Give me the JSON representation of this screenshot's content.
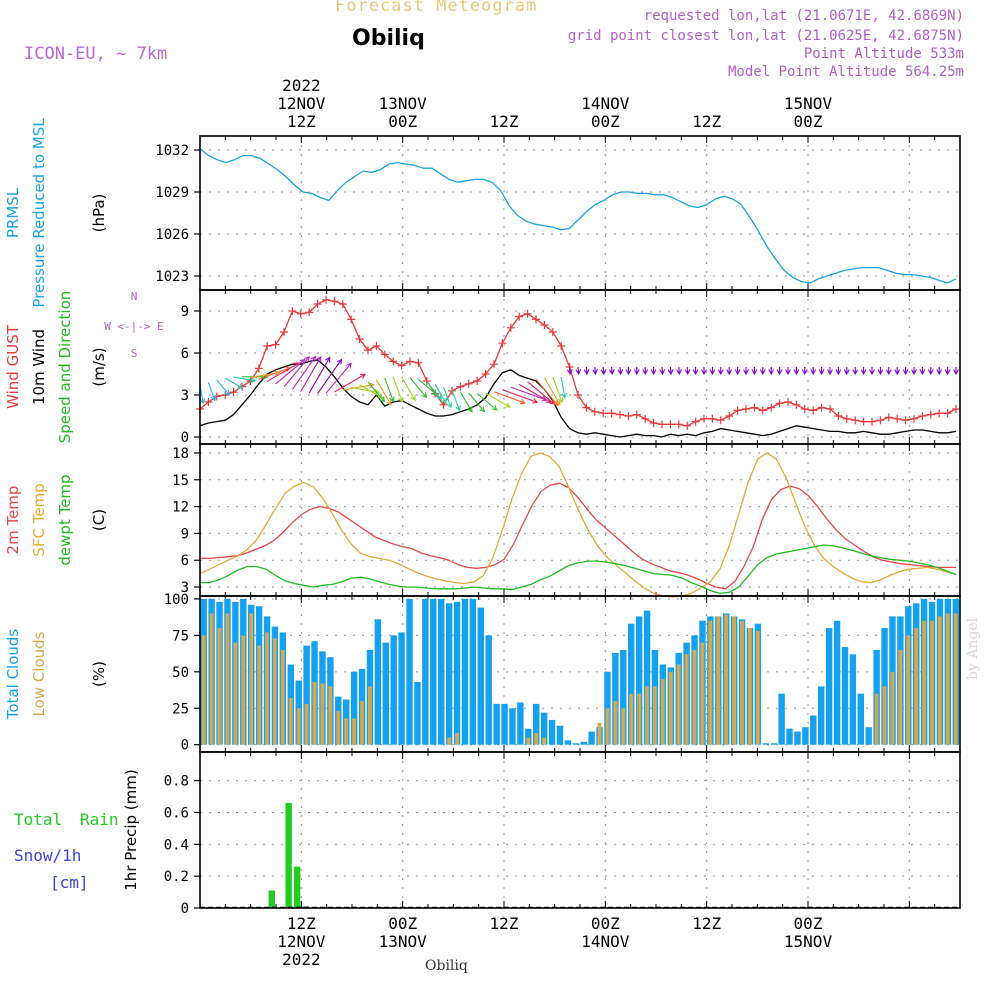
{
  "header": {
    "title": "Forecast Meteogram",
    "location": "Obiliq",
    "model": "ICON-EU, ~ 7km",
    "requested": "requested lon,lat (21.0671E, 42.6869N)",
    "gridpoint": "grid point closest lon,lat (21.0625E, 42.6875N)",
    "point_alt": "Point Altitude 533m",
    "model_alt": "Model Point Altitude 564.25m"
  },
  "footer": {
    "location": "Obiliq",
    "credit": "by Angel"
  },
  "colors": {
    "pressure": "#1aa3e8",
    "gust": "#e83c3c",
    "wind": "#000000",
    "direction": "#22bb22",
    "temp2m": "#e84848",
    "sfc": "#e8a838",
    "dewpt": "#22bb22",
    "total_clouds": "#16a0f0",
    "low_clouds": "#d8a850",
    "rain": "#22cc22",
    "snow": "#4040e0",
    "arrow_low": "#8000d0"
  },
  "time_axis": {
    "top_labels": [
      {
        "h": 12,
        "lines": [
          "2022",
          "12NOV",
          "12Z"
        ]
      },
      {
        "h": 24,
        "lines": [
          "13NOV",
          "00Z"
        ]
      },
      {
        "h": 36,
        "lines": [
          "12Z"
        ]
      },
      {
        "h": 48,
        "lines": [
          "14NOV",
          "00Z"
        ]
      },
      {
        "h": 60,
        "lines": [
          "12Z"
        ]
      },
      {
        "h": 72,
        "lines": [
          "15NOV",
          "00Z"
        ]
      }
    ],
    "bottom_labels": [
      {
        "h": 12,
        "lines": [
          "12Z",
          "12NOV",
          "2022"
        ]
      },
      {
        "h": 24,
        "lines": [
          "00Z",
          "13NOV"
        ]
      },
      {
        "h": 36,
        "lines": [
          "12Z"
        ]
      },
      {
        "h": 48,
        "lines": [
          "00Z",
          "14NOV"
        ]
      },
      {
        "h": 60,
        "lines": [
          "12Z"
        ]
      },
      {
        "h": 72,
        "lines": [
          "00Z",
          "15NOV"
        ]
      }
    ]
  },
  "chart_data": [
    {
      "type": "line",
      "id": "pressure",
      "ylabel_lines": [
        {
          "text": "PRMSL",
          "color": "#1aa3e8"
        },
        {
          "text": "Pressure Reduced to MSL",
          "color": "#1aa3e8"
        },
        {
          "text": "(hPa)",
          "color": "#000000"
        }
      ],
      "ylim": [
        1022,
        1033
      ],
      "yticks": [
        1023,
        1026,
        1029,
        1032
      ],
      "series": [
        {
          "key": "prmsl",
          "values": [
            1032.1,
            1031.6,
            1031.3,
            1031.1,
            1031.3,
            1031.6,
            1031.6,
            1031.4,
            1031.0,
            1030.6,
            1030.1,
            1029.5,
            1029.0,
            1028.9,
            1028.6,
            1028.4,
            1029.1,
            1029.7,
            1030.1,
            1030.5,
            1030.4,
            1030.6,
            1031.0,
            1031.1,
            1031.0,
            1030.9,
            1030.7,
            1030.7,
            1030.3,
            1029.9,
            1029.7,
            1029.8,
            1029.9,
            1029.9,
            1029.7,
            1029.1,
            1028.0,
            1027.3,
            1026.9,
            1026.7,
            1026.6,
            1026.5,
            1026.3,
            1026.4,
            1027.0,
            1027.6,
            1028.1,
            1028.4,
            1028.8,
            1029.0,
            1029.0,
            1028.9,
            1028.9,
            1028.8,
            1028.8,
            1028.6,
            1028.3,
            1028.0,
            1027.9,
            1028.1,
            1028.5,
            1028.7,
            1028.5,
            1028.1,
            1027.2,
            1026.2,
            1025.1,
            1024.2,
            1023.4,
            1022.9,
            1022.6,
            1022.5,
            1022.8,
            1023.0,
            1023.2,
            1023.4,
            1023.5,
            1023.6,
            1023.6,
            1023.6,
            1023.4,
            1023.2,
            1023.1,
            1023.1,
            1023.0,
            1022.9,
            1022.7,
            1022.5,
            1022.8
          ]
        }
      ]
    },
    {
      "type": "line",
      "id": "wind",
      "ylabel_lines": [
        {
          "text": "Wind GUST",
          "color": "#e83c3c"
        },
        {
          "text": "10m Wind",
          "color": "#000000"
        },
        {
          "text": "Speed and Direction",
          "color": "#22bb22"
        },
        {
          "text": "(m/s)",
          "color": "#000000"
        }
      ],
      "compass": "W <-|-> E",
      "ylim": [
        -0.5,
        10.5
      ],
      "yticks": [
        0,
        3,
        6,
        9
      ],
      "series": [
        {
          "key": "gust",
          "values": [
            2.0,
            2.5,
            2.9,
            3.0,
            3.2,
            3.6,
            4.0,
            4.9,
            6.5,
            6.6,
            7.5,
            9.0,
            8.8,
            8.9,
            9.5,
            9.8,
            9.7,
            9.5,
            8.4,
            7.0,
            6.2,
            6.5,
            5.9,
            5.4,
            5.1,
            5.4,
            5.3,
            4.0,
            3.1,
            2.3,
            3.3,
            3.6,
            3.8,
            4.0,
            4.5,
            5.2,
            6.7,
            7.8,
            8.6,
            8.8,
            8.4,
            8.0,
            7.5,
            6.5,
            5.0,
            3.0,
            2.1,
            1.8,
            1.7,
            1.7,
            1.6,
            1.5,
            1.6,
            1.3,
            1.0,
            0.9,
            0.9,
            0.9,
            0.8,
            1.1,
            1.3,
            1.3,
            1.2,
            1.5,
            1.9,
            2.0,
            2.1,
            1.9,
            2.1,
            2.4,
            2.5,
            2.3,
            2.0,
            1.9,
            2.1,
            2.0,
            1.5,
            1.3,
            1.2,
            1.1,
            1.1,
            1.2,
            1.4,
            1.3,
            1.2,
            1.3,
            1.5,
            1.6,
            1.7,
            1.7,
            2.0
          ]
        },
        {
          "key": "wind",
          "values": [
            0.8,
            1.0,
            1.1,
            1.2,
            1.6,
            2.3,
            3.0,
            3.8,
            4.5,
            4.8,
            5.0,
            5.2,
            5.2,
            5.4,
            5.5,
            5.0,
            4.3,
            3.5,
            2.9,
            2.5,
            2.3,
            3.0,
            2.2,
            2.5,
            2.6,
            2.3,
            2.0,
            1.7,
            1.5,
            1.5,
            1.6,
            1.8,
            2.0,
            2.3,
            2.8,
            3.8,
            4.6,
            4.8,
            4.4,
            4.2,
            4.0,
            3.4,
            2.6,
            1.4,
            0.6,
            0.3,
            0.2,
            0.3,
            0.2,
            0.1,
            0.0,
            0.1,
            0.2,
            0.1,
            0.1,
            0.0,
            0.2,
            0.1,
            0.2,
            0.1,
            0.3,
            0.4,
            0.6,
            0.5,
            0.4,
            0.3,
            0.2,
            0.1,
            0.2,
            0.4,
            0.6,
            0.8,
            0.7,
            0.6,
            0.5,
            0.4,
            0.4,
            0.3,
            0.3,
            0.4,
            0.3,
            0.2,
            0.2,
            0.3,
            0.4,
            0.5,
            0.5,
            0.4,
            0.3,
            0.3,
            0.4
          ]
        }
      ],
      "direction_angles": [
        170,
        160,
        140,
        120,
        100,
        90,
        80,
        70,
        60,
        50,
        40,
        35,
        30,
        30,
        35,
        40,
        60,
        80,
        100,
        120,
        140,
        150,
        160,
        160,
        150,
        140,
        130,
        140,
        150,
        160,
        160,
        150,
        140,
        130,
        120,
        110,
        110,
        110,
        120,
        130,
        140,
        150,
        160,
        170,
        175,
        175,
        175,
        175,
        175,
        175,
        175,
        180,
        180,
        180,
        180,
        175,
        175,
        175,
        175,
        180,
        180,
        180,
        180,
        180,
        180,
        180,
        180,
        180,
        180,
        180,
        180,
        180,
        180,
        180,
        180,
        180,
        180,
        180,
        180,
        180,
        180,
        180,
        180,
        180,
        180,
        180,
        180,
        180,
        180,
        180,
        180
      ]
    },
    {
      "type": "line",
      "id": "temperature",
      "ylabel_lines": [
        {
          "text": "2m Temp",
          "color": "#e84848"
        },
        {
          "text": "SFC Temp",
          "color": "#e8a838"
        },
        {
          "text": "dewpt Temp",
          "color": "#22bb22"
        },
        {
          "text": "(C)",
          "color": "#000000"
        }
      ],
      "ylim": [
        2,
        19
      ],
      "yticks": [
        3,
        6,
        9,
        12,
        15,
        18
      ],
      "series": [
        {
          "key": "t2m",
          "values": [
            6.2,
            6.2,
            6.3,
            6.4,
            6.5,
            6.8,
            7.2,
            7.6,
            8.2,
            9.1,
            10.2,
            11.1,
            11.7,
            12.0,
            11.8,
            11.4,
            10.7,
            10.0,
            9.3,
            8.6,
            8.2,
            7.8,
            7.5,
            7.3,
            6.8,
            6.5,
            6.3,
            6.0,
            5.5,
            5.2,
            5.1,
            5.2,
            5.5,
            6.1,
            7.8,
            10.0,
            12.1,
            13.7,
            14.4,
            14.6,
            14.1,
            13.0,
            11.7,
            10.5,
            9.6,
            8.7,
            7.8,
            6.9,
            6.1,
            5.6,
            5.2,
            4.8,
            4.6,
            4.3,
            3.9,
            3.4,
            3.0,
            2.8,
            3.6,
            5.3,
            7.5,
            10.6,
            12.8,
            13.9,
            14.3,
            14.0,
            13.2,
            12.0,
            10.6,
            9.4,
            8.4,
            7.7,
            7.0,
            6.4,
            6.0,
            5.8,
            5.6,
            5.5,
            5.4,
            5.3,
            5.2,
            5.2,
            5.2
          ]
        },
        {
          "key": "sfc",
          "values": [
            4.5,
            5.0,
            5.5,
            6.0,
            6.5,
            7.2,
            8.3,
            10.0,
            11.8,
            13.5,
            14.3,
            14.7,
            14.2,
            12.9,
            11.2,
            9.3,
            7.8,
            6.8,
            6.4,
            6.2,
            6.0,
            5.6,
            5.1,
            4.6,
            4.2,
            3.9,
            3.7,
            3.5,
            3.4,
            3.6,
            4.3,
            6.3,
            9.4,
            12.8,
            15.6,
            17.6,
            18.0,
            17.6,
            16.5,
            14.2,
            11.7,
            9.5,
            7.7,
            6.4,
            5.5,
            4.6,
            3.7,
            2.9,
            2.3,
            2.0,
            1.9,
            2.0,
            2.3,
            2.9,
            3.6,
            5.0,
            7.6,
            11.1,
            14.7,
            17.3,
            18.0,
            17.3,
            15.3,
            12.5,
            9.8,
            7.7,
            6.2,
            5.3,
            4.6,
            4.0,
            3.6,
            3.5,
            3.8,
            4.3,
            4.7,
            5.0,
            5.1,
            5.2,
            5.0,
            4.7,
            4.4
          ]
        },
        {
          "key": "dewpt",
          "values": [
            3.5,
            3.5,
            3.8,
            4.3,
            4.9,
            5.3,
            5.3,
            5.0,
            4.3,
            3.7,
            3.4,
            3.2,
            3.0,
            3.2,
            3.3,
            3.6,
            4.0,
            4.1,
            3.9,
            3.6,
            3.3,
            3.1,
            3.0,
            3.0,
            2.9,
            2.8,
            2.8,
            2.8,
            2.9,
            3.0,
            2.9,
            2.8,
            2.8,
            2.7,
            3.0,
            3.3,
            3.8,
            4.2,
            4.8,
            5.4,
            5.7,
            5.9,
            5.9,
            5.8,
            5.6,
            5.4,
            5.1,
            4.8,
            4.5,
            4.4,
            4.3,
            4.0,
            3.5,
            3.1,
            2.6,
            2.3,
            2.4,
            3.0,
            4.2,
            5.5,
            6.3,
            6.7,
            6.9,
            7.1,
            7.3,
            7.5,
            7.7,
            7.6,
            7.4,
            7.1,
            6.8,
            6.5,
            6.3,
            6.1,
            6.0,
            5.9,
            5.7,
            5.5,
            5.2,
            4.8,
            4.4
          ]
        }
      ]
    },
    {
      "type": "bar",
      "id": "clouds",
      "ylabel_lines": [
        {
          "text": "Total Clouds",
          "color": "#16a0f0"
        },
        {
          "text": "Low Clouds",
          "color": "#d8a850"
        },
        {
          "text": "(%)",
          "color": "#000000"
        }
      ],
      "ylim": [
        -5,
        102
      ],
      "yticks": [
        0,
        25,
        50,
        75,
        100
      ],
      "series": [
        {
          "key": "total",
          "values": [
            100,
            100,
            98,
            100,
            98,
            100,
            96,
            95,
            88,
            81,
            77,
            55,
            44,
            68,
            71,
            64,
            60,
            33,
            31,
            50,
            52,
            65,
            86,
            70,
            75,
            77,
            100,
            43,
            100,
            100,
            100,
            97,
            98,
            100,
            100,
            94,
            75,
            28,
            28,
            25,
            29,
            11,
            28,
            22,
            17,
            13,
            3,
            1,
            2,
            9,
            12,
            50,
            63,
            65,
            83,
            88,
            92,
            65,
            55,
            53,
            63,
            70,
            75,
            85,
            88,
            88,
            90,
            88,
            86,
            80,
            83,
            1,
            1,
            35,
            11,
            9,
            12,
            20,
            40,
            80,
            85,
            67,
            62,
            35,
            12,
            65,
            80,
            88,
            88,
            95,
            97,
            100,
            98,
            100,
            100,
            100
          ]
        },
        {
          "key": "low",
          "values": [
            75,
            90,
            80,
            90,
            70,
            75,
            90,
            68,
            77,
            73,
            65,
            32,
            25,
            28,
            43,
            42,
            40,
            23,
            18,
            18,
            30,
            40,
            0,
            0,
            0,
            0,
            0,
            0,
            0,
            0,
            0,
            5,
            8,
            0,
            0,
            0,
            0,
            0,
            0,
            0,
            0,
            5,
            8,
            5,
            0,
            0,
            0,
            0,
            0,
            0,
            15,
            25,
            30,
            25,
            35,
            35,
            40,
            40,
            45,
            50,
            55,
            62,
            65,
            70,
            85,
            88,
            89,
            88,
            85,
            80,
            78,
            0,
            0,
            0,
            0,
            0,
            0,
            0,
            0,
            0,
            0,
            0,
            0,
            0,
            0,
            35,
            40,
            50,
            65,
            75,
            80,
            85,
            85,
            88,
            90,
            90
          ]
        }
      ]
    },
    {
      "type": "bar",
      "id": "precip",
      "legend": {
        "total": "Total Rain",
        "total_a": "Total",
        "total_b": "Rain",
        "snow": "Snow/1h",
        "snow_unit": "[cm]"
      },
      "ylabel": "1hr Precip (mm)",
      "ylim": [
        0,
        0.98
      ],
      "yticks": [
        0,
        0.2,
        0.4,
        0.6,
        0.8
      ],
      "ytick_labels": [
        "0",
        "0.2",
        "0.4",
        "0.6",
        "0.8"
      ],
      "series": [
        {
          "key": "rain",
          "values": [
            0,
            0,
            0,
            0,
            0,
            0,
            0,
            0,
            0.11,
            0,
            0.66,
            0.26,
            0.01
          ]
        }
      ]
    }
  ]
}
